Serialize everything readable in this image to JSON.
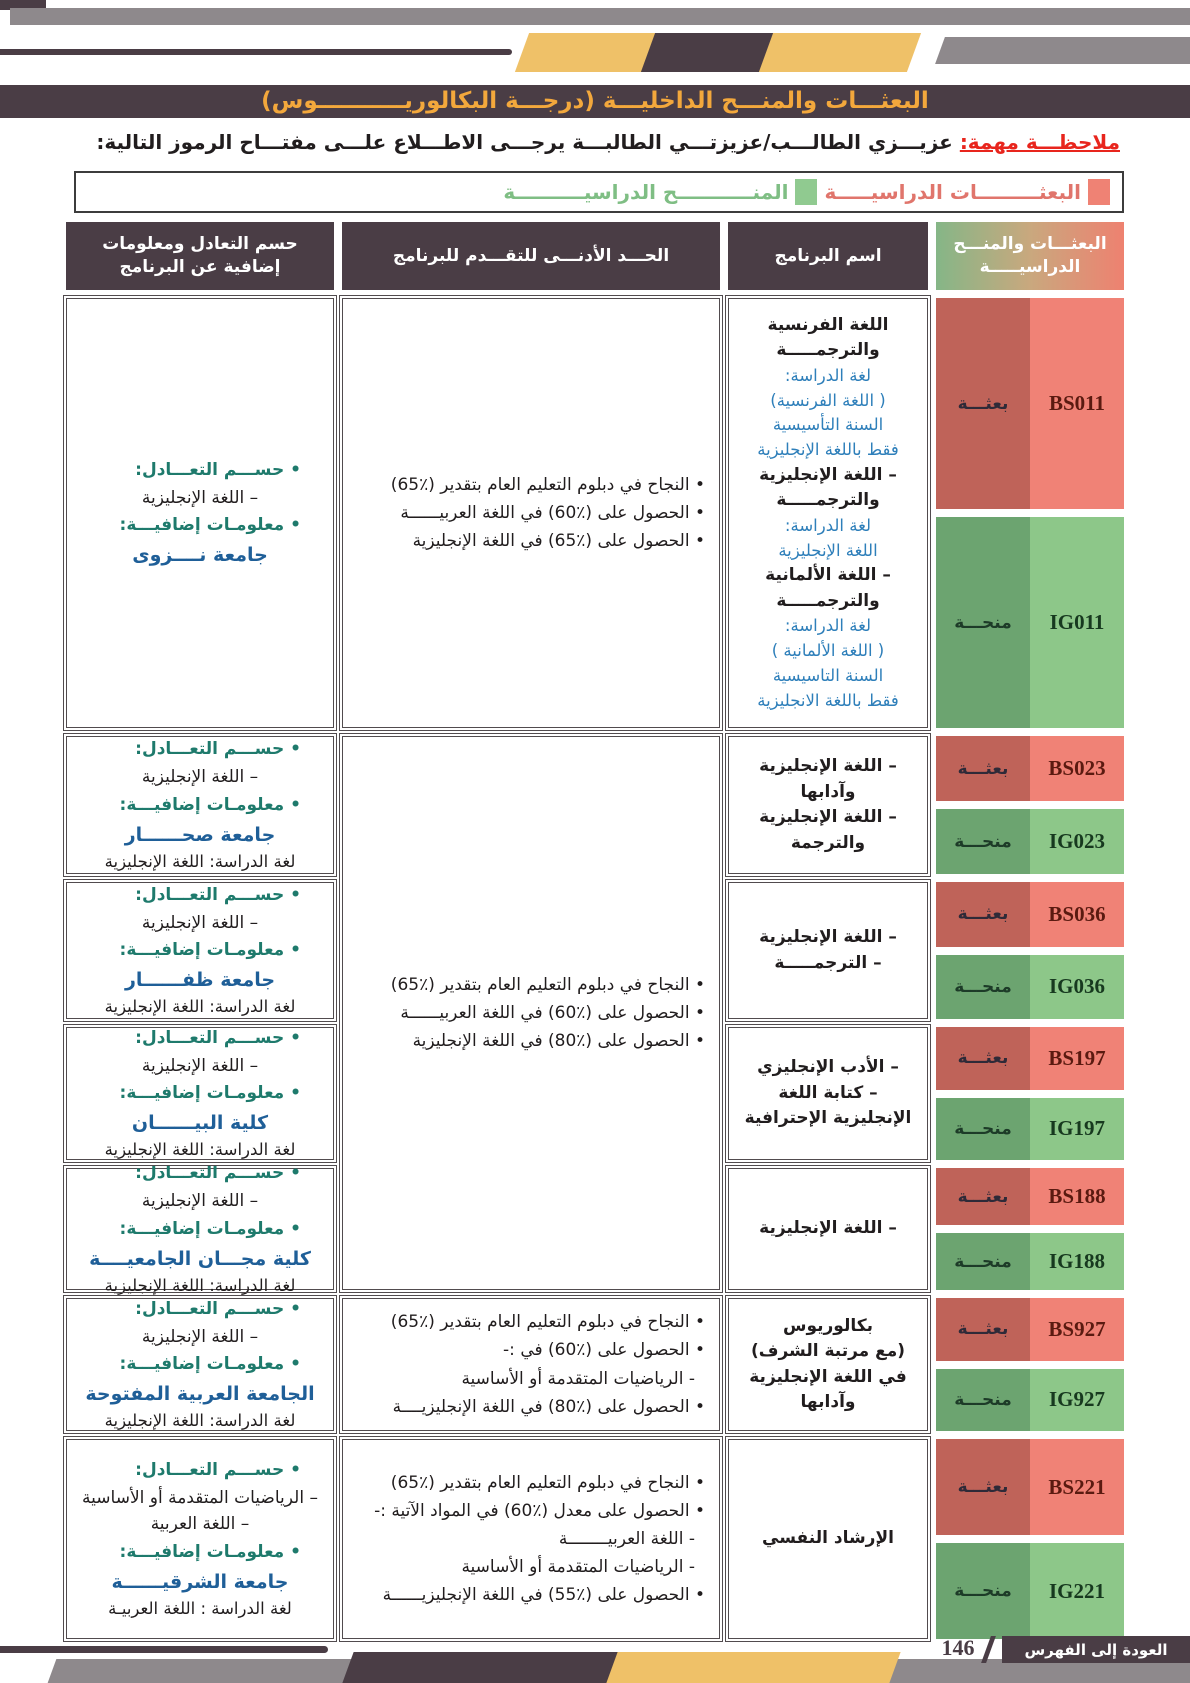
{
  "page": {
    "title": "البعثـــات والمنـــح الداخليـــة (درجـــة البكالوريـــــــــــوس)",
    "note_label": "ملاحظـــة مهمة:",
    "note_text": "عزيـــزي الطالـــب/عزيزتـــي الطالبـــة يرجـــى الاطـــلاع علـــى مفتـــاح الرموز التالية:",
    "footer": {
      "back_label": "العودة إلى الفهرس",
      "page_number": "146"
    }
  },
  "legend": {
    "scholarships_label": "البعثـــــــــات الدراسيـــــة",
    "grants_label": "المنـــــــــــح الدراسيــــــــــة"
  },
  "colors": {
    "scholarship_red": "#EF8274",
    "grant_green": "#8DC789",
    "header_purple": "#4A3D45",
    "accent_yellow": "#EFC168",
    "title_orange": "#F3A83C"
  },
  "table": {
    "headers": {
      "codes": "البعثـــات والمنـــح الدراسيـــــة",
      "program": "اسم البرنامج",
      "minimum": "الحـــد الأدنـــى للتقـــدم للبرنامج",
      "info": "حسم التعادل ومعلومات إضافية عن البرنامج"
    },
    "rows": [
      {
        "s_code": "BS011",
        "s_label": "بعثـــة",
        "g_code": "IG011",
        "g_label": "منحـــة",
        "program": [
          {
            "t": "b",
            "s": "اللغة الفرنسية"
          },
          {
            "t": "b",
            "s": "والترجمـــــة"
          },
          {
            "t": "u",
            "s": "لغة الدراسة:"
          },
          {
            "t": "u",
            "s": "( اللغة الفرنسية)"
          },
          {
            "t": "u",
            "s": "السنة التأسيسية"
          },
          {
            "t": "u",
            "s": "فقط باللغة الإنجليزية"
          },
          {
            "t": "b",
            "s": "– اللغة الإنجليزية"
          },
          {
            "t": "b",
            "s": "والترجمـــــة"
          },
          {
            "t": "u",
            "s": "لغة الدراسة:"
          },
          {
            "t": "u",
            "s": "اللغة الإنجليزية"
          },
          {
            "t": "b",
            "s": "– اللغة الألمانية"
          },
          {
            "t": "b",
            "s": "والترجمـــــة"
          },
          {
            "t": "u",
            "s": "لغة الدراسة:"
          },
          {
            "t": "u",
            "s": "( اللغة الألمانية )"
          },
          {
            "t": "u",
            "s": "السنة التاسيسية"
          },
          {
            "t": "u",
            "s": "فقط باللغة الانجليزية"
          }
        ],
        "span": 1,
        "conditions": [
          {
            "t": "c",
            "s": "• النجاح في دبلوم التعليم العام بتقدير (٪65)"
          },
          {
            "t": "c",
            "s": "• الحصول على (٪60) في اللغة العربيــــــة"
          },
          {
            "t": "c",
            "s": "• الحصول على (٪65) في اللغة الإنجليزية"
          }
        ],
        "info": [
          {
            "t": "h",
            "s": "• حســـم التعـــادل:"
          },
          {
            "t": "k",
            "s": "– اللغة الإنجليزية"
          },
          {
            "t": "h",
            "s": "• معلومـات إضافيـــة:"
          },
          {
            "t": "v",
            "s": "جامعة نــــزوى"
          }
        ]
      },
      {
        "s_code": "BS023",
        "s_label": "بعثـــة",
        "g_code": "IG023",
        "g_label": "منحـــة",
        "program": [
          {
            "t": "b",
            "s": "– اللغة الإنجليزية"
          },
          {
            "t": "b",
            "s": "وآدابها"
          },
          {
            "t": "b",
            "s": "– اللغة الإنجليزية"
          },
          {
            "t": "b",
            "s": "والترجمة"
          }
        ],
        "span": 4,
        "conditions": [
          {
            "t": "c",
            "s": "• النجاح في دبلوم التعليم العام بتقدير (٪65)"
          },
          {
            "t": "c",
            "s": "• الحصول على (٪60) في اللغة العربيــــــة"
          },
          {
            "t": "c",
            "s": "• الحصول على (٪80) في اللغة الإنجليزية"
          }
        ],
        "info": [
          {
            "t": "h",
            "s": "• حســـم التعـــادل:"
          },
          {
            "t": "k",
            "s": "– اللغة الإنجليزية"
          },
          {
            "t": "h",
            "s": "• معلومـات إضافيـــة:"
          },
          {
            "t": "v",
            "s": "جامعة صحــــــار"
          },
          {
            "t": "n",
            "s": "لغة الدراسة: اللغة الإنجليزية"
          }
        ]
      },
      {
        "s_code": "BS036",
        "s_label": "بعثـــة",
        "g_code": "IG036",
        "g_label": "منحـــة",
        "program": [
          {
            "t": "b",
            "s": "– اللغة الإنجليزية"
          },
          {
            "t": "b",
            "s": "– الترجمـــــة"
          }
        ],
        "span": 0,
        "conditions": null,
        "info": [
          {
            "t": "h",
            "s": "• حســـم التعـــادل:"
          },
          {
            "t": "k",
            "s": "– اللغة الإنجليزية"
          },
          {
            "t": "h",
            "s": "• معلومـات إضافيـــة:"
          },
          {
            "t": "v",
            "s": "جامعة ظفــــــار"
          },
          {
            "t": "n",
            "s": "لغة الدراسة: اللغة الإنجليزية"
          }
        ]
      },
      {
        "s_code": "BS197",
        "s_label": "بعثـــة",
        "g_code": "IG197",
        "g_label": "منحـــة",
        "program": [
          {
            "t": "b",
            "s": "– الأدب الإنجليزي"
          },
          {
            "t": "b",
            "s": "– كتابة اللغة"
          },
          {
            "t": "b",
            "s": "الإنجليزية الإحترافية"
          }
        ],
        "span": 0,
        "conditions": null,
        "info": [
          {
            "t": "h",
            "s": "• حســـم التعـــادل:"
          },
          {
            "t": "k",
            "s": "– اللغة الإنجليزية"
          },
          {
            "t": "h",
            "s": "• معلومـات إضافيـــة:"
          },
          {
            "t": "v",
            "s": "كلية البيــــــان"
          },
          {
            "t": "n",
            "s": "لغة الدراسة: اللغة الإنجليزية"
          }
        ]
      },
      {
        "s_code": "BS188",
        "s_label": "بعثـــة",
        "g_code": "IG188",
        "g_label": "منحـــة",
        "program": [
          {
            "t": "b",
            "s": "– اللغة الإنجليزية"
          }
        ],
        "span": 0,
        "conditions": null,
        "info": [
          {
            "t": "h",
            "s": "• حســـم التعـــادل:"
          },
          {
            "t": "k",
            "s": "– اللغة الإنجليزية"
          },
          {
            "t": "h",
            "s": "• معلومـات إضافيـــة:"
          },
          {
            "t": "v",
            "s": "كلية مجـــان الجامعيــــة"
          },
          {
            "t": "n",
            "s": "لغة الدراسة: اللغة الإنجليزية"
          }
        ]
      },
      {
        "s_code": "BS927",
        "s_label": "بعثـــة",
        "g_code": "IG927",
        "g_label": "منحـــة",
        "program": [
          {
            "t": "b",
            "s": "بكالوريوس"
          },
          {
            "t": "b",
            "s": "(مع مرتبة الشرف)"
          },
          {
            "t": "b",
            "s": "في اللغة الإنجليزية"
          },
          {
            "t": "b",
            "s": "وآدابها"
          }
        ],
        "span": 1,
        "conditions": [
          {
            "t": "c",
            "s": "• النجاح في دبلوم التعليم العام بتقدير (٪65)"
          },
          {
            "t": "c",
            "s": "• الحصول على (٪60) في :-"
          },
          {
            "t": "d",
            "s": "- الرياضيات المتقدمة أو الأساسية"
          },
          {
            "t": "c",
            "s": "• الحصول على (٪80) في اللغة الإنجليزيــــة"
          }
        ],
        "info": [
          {
            "t": "h",
            "s": "• حســـم التعـــادل:"
          },
          {
            "t": "k",
            "s": "– اللغة الإنجليزية"
          },
          {
            "t": "h",
            "s": "• معلومـات إضافيـــة:"
          },
          {
            "t": "v",
            "s": "الجامعة العربية المفتوحة"
          },
          {
            "t": "n",
            "s": "لغة الدراسة: اللغة الإنجليزية"
          }
        ]
      },
      {
        "s_code": "BS221",
        "s_label": "بعثـــة",
        "g_code": "IG221",
        "g_label": "منحـــة",
        "program": [
          {
            "t": "b",
            "s": "الإرشاد النفسي"
          }
        ],
        "span": 1,
        "conditions": [
          {
            "t": "c",
            "s": "• النجاح في دبلوم التعليم العام بتقدير (٪65)"
          },
          {
            "t": "c",
            "s": "• الحصول على معدل (٪60) في المواد الآتية :-"
          },
          {
            "t": "d",
            "s": "- اللغة العربيــــــــة"
          },
          {
            "t": "d",
            "s": "- الرياضيات المتقدمة أو الأساسية"
          },
          {
            "t": "c",
            "s": "• الحصول على (٪55) في اللغة الإنجليزيــــــة"
          }
        ],
        "info": [
          {
            "t": "h",
            "s": "• حســـم التعـــادل:"
          },
          {
            "t": "k",
            "s": "– الرياضيات المتقدمة أو الأساسية"
          },
          {
            "t": "k",
            "s": "– اللغة العربية"
          },
          {
            "t": "h",
            "s": "• معلومـات إضافيـــة:"
          },
          {
            "t": "v",
            "s": "جامعة الشرقيــــــة"
          },
          {
            "t": "n",
            "s": "لغة الدراسة : اللغة العربيـة"
          }
        ]
      }
    ]
  }
}
